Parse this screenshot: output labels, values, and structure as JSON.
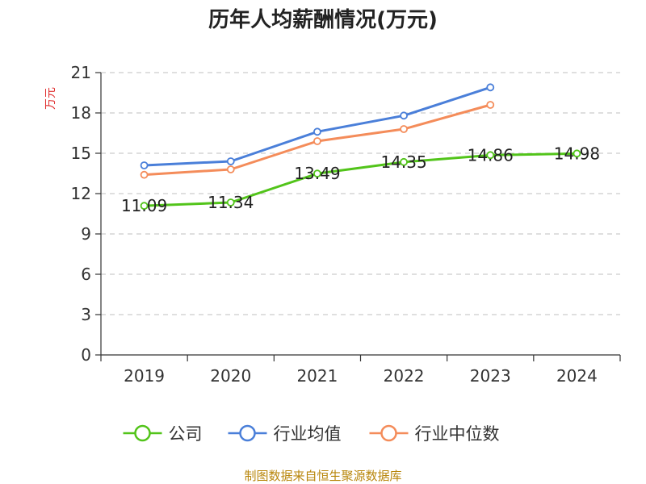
{
  "chart_data": {
    "type": "line",
    "title": "历年人均薪酬情况(万元)",
    "ylabel": "万元",
    "categories": [
      "2019",
      "2020",
      "2021",
      "2022",
      "2023",
      "2024"
    ],
    "ylim": [
      0,
      21
    ],
    "yticks": [
      0,
      3,
      6,
      9,
      12,
      15,
      18,
      21
    ],
    "grid": true,
    "legend_position": "bottom",
    "series": [
      {
        "name": "公司",
        "color": "#52c41a",
        "values": [
          11.09,
          11.34,
          13.49,
          14.35,
          14.86,
          14.98
        ],
        "labels": [
          "11.09",
          "11.34",
          "13.49",
          "14.35",
          "14.86",
          "14.98"
        ]
      },
      {
        "name": "行业均值",
        "color": "#4a7fd9",
        "values": [
          14.1,
          14.4,
          16.6,
          17.8,
          19.9,
          null
        ],
        "labels": []
      },
      {
        "name": "行业中位数",
        "color": "#f48c5a",
        "values": [
          13.4,
          13.8,
          15.9,
          16.8,
          18.6,
          null
        ],
        "labels": []
      }
    ],
    "source": "制图数据来自恒生聚源数据库"
  }
}
